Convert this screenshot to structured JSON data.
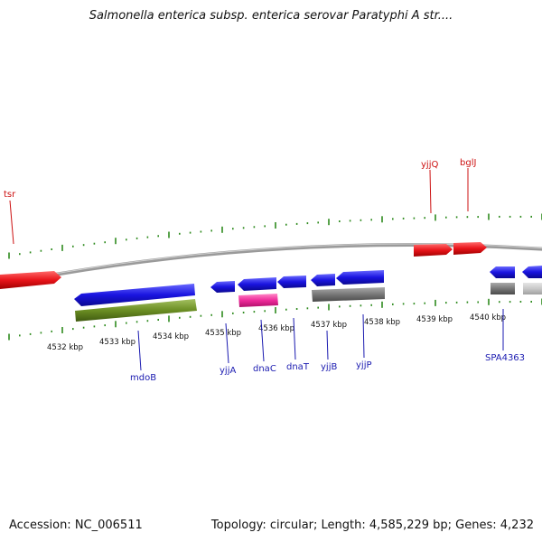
{
  "title": "Salmonella enterica subsp. enterica serovar Paratyphi A str....",
  "footer": {
    "accession": "Accession: NC_006511",
    "summary": "Topology: circular; Length: 4,585,229 bp; Genes: 4,232"
  },
  "colors": {
    "forward_gene": "#e8141a",
    "reverse_gene": "#1a14e0",
    "forward_label": "#cc1010",
    "reverse_label": "#1a1ab0",
    "tick": "#2e8b1e",
    "backbone": "#8c8c8c",
    "olive_feature": "#6b8e23",
    "magenta_feature": "#ee2a9a",
    "gray_feature": "#777777",
    "light_gray_feature": "#c8c8c8"
  },
  "scale_labels": [
    "4532 kbp",
    "4533 kbp",
    "4534 kbp",
    "4535 kbp",
    "4536 kbp",
    "4537 kbp",
    "4538 kbp",
    "4539 kbp",
    "4540 kbp"
  ],
  "genes_forward": [
    {
      "label": "tsr"
    },
    {
      "label": "yjjQ"
    },
    {
      "label": "bglJ"
    }
  ],
  "genes_reverse": [
    {
      "label": "mdoB"
    },
    {
      "label": "yjjA"
    },
    {
      "label": "dnaC"
    },
    {
      "label": "dnaT"
    },
    {
      "label": "yjjB"
    },
    {
      "label": "yjjP"
    },
    {
      "label": "SPA4363"
    }
  ]
}
